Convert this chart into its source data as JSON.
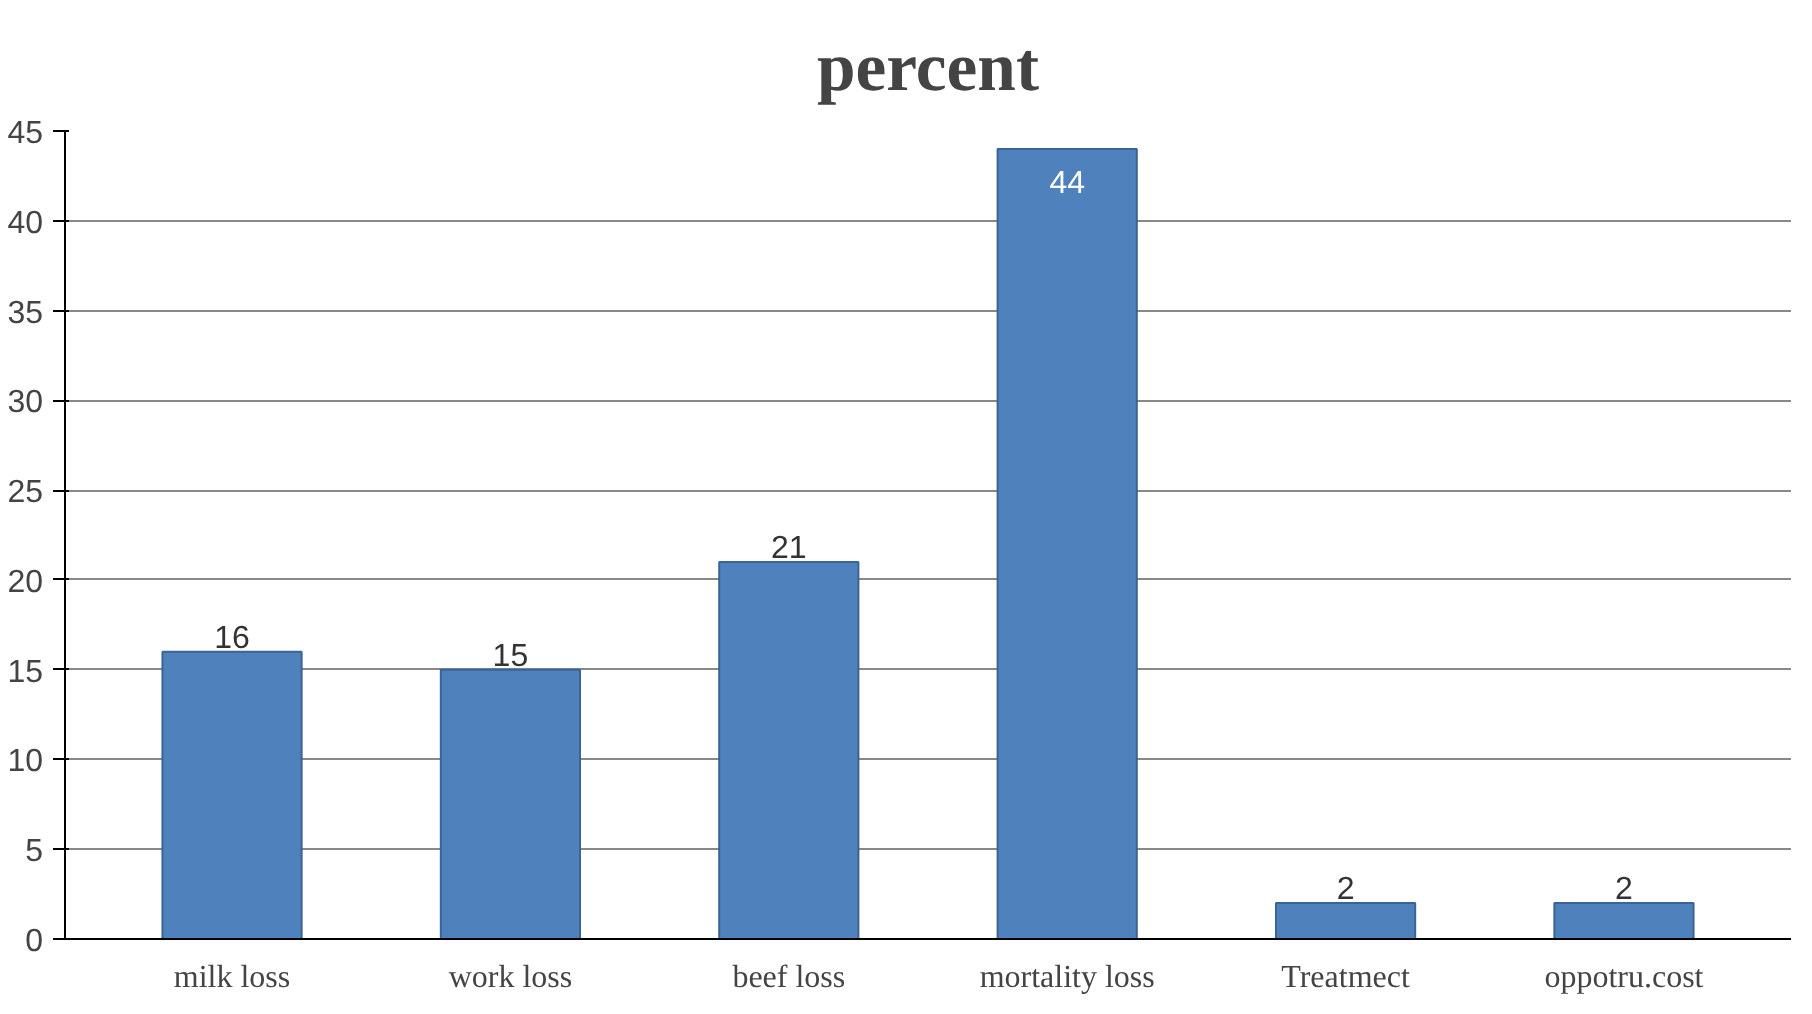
{
  "chart_data": {
    "type": "bar",
    "title": "percent",
    "categories": [
      "milk loss",
      "work loss",
      "beef loss",
      "mortality loss",
      "Treatmect",
      "oppotru.cost"
    ],
    "values": [
      16,
      15,
      21,
      44,
      2,
      2
    ],
    "color": "#4f81bd",
    "ylim": [
      0,
      45
    ],
    "yticks": [
      0,
      5,
      10,
      15,
      20,
      25,
      30,
      35,
      40,
      45
    ],
    "grid": "y",
    "data_labels": true
  }
}
